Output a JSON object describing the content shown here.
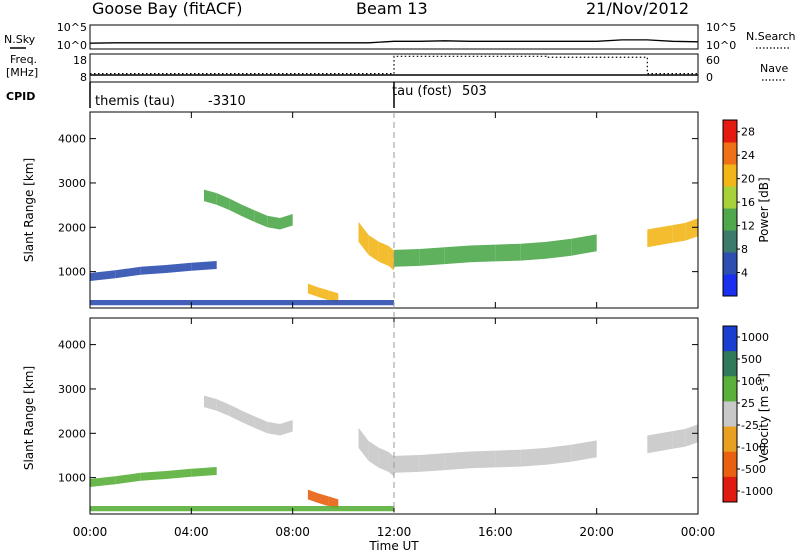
{
  "header": {
    "station": "Goose Bay (fitACF)",
    "beam": "Beam 13",
    "date": "21/Nov/2012"
  },
  "chart_data": [
    {
      "type": "line",
      "panel": "noise",
      "left_label": "N.Sky",
      "right_label": "N.Search",
      "left_ticks": [
        "10^5",
        "10^0"
      ],
      "right_ticks": [
        "10^5",
        "10^0"
      ],
      "x": [
        "00:00",
        "01:00",
        "02:00",
        "03:00",
        "04:00",
        "05:00",
        "06:00",
        "07:00",
        "08:00",
        "09:00",
        "10:00",
        "11:00",
        "12:00",
        "13:00",
        "14:00",
        "15:00",
        "16:00",
        "17:00",
        "18:00",
        "19:00",
        "20:00",
        "21:00",
        "22:00",
        "23:00",
        "24:00"
      ],
      "series": [
        {
          "name": "N.Sky",
          "values": [
            1.2,
            1.3,
            1.3,
            1.3,
            1.3,
            1.3,
            1.3,
            1.3,
            1.3,
            1.3,
            1.3,
            1.3,
            1.6,
            1.6,
            1.7,
            1.6,
            1.6,
            1.6,
            1.6,
            1.6,
            1.6,
            1.9,
            1.9,
            1.6,
            1.5
          ]
        }
      ]
    },
    {
      "type": "line",
      "panel": "frequency",
      "left_label": "Freq.",
      "left_unit": "[MHz]",
      "right_label": "Nave",
      "left_ticks": [
        "18",
        "8"
      ],
      "right_ticks": [
        "60",
        "0"
      ],
      "x": [
        "00:00",
        "12:00",
        "18:00",
        "22:00",
        "24:00"
      ],
      "series": [
        {
          "name": "Freq.",
          "values": [
            10.5,
            10.5,
            10.5,
            10.5,
            10.5
          ]
        },
        {
          "name": "Nave",
          "values": [
            18,
            55,
            53,
            18,
            18
          ]
        }
      ]
    },
    {
      "type": "table",
      "panel": "cpid",
      "label": "CPID",
      "segments": [
        {
          "start": "00:00",
          "end": "12:00",
          "name": "themis (tau)",
          "id": "-3310"
        },
        {
          "start": "12:00",
          "end": "24:00",
          "name": "tau (fost)",
          "id": "503"
        }
      ]
    },
    {
      "type": "heatmap",
      "panel": "power",
      "ylabel": "Slant Range [km]",
      "yticks": [
        1000,
        2000,
        3000,
        4000
      ],
      "ylim": [
        180,
        4600
      ],
      "colorbar_label": "Power [dB]",
      "colorbar_ticks": [
        4,
        8,
        12,
        16,
        20,
        24,
        28
      ],
      "colorbar_range": [
        0,
        30
      ],
      "echo_bands": [
        {
          "t": [
            4.5,
            5.0,
            5.5,
            6.0,
            6.5,
            7.0,
            7.5,
            8.0
          ],
          "range": [
            2720,
            2640,
            2520,
            2380,
            2250,
            2130,
            2080,
            2170
          ],
          "width": 260,
          "level": 14
        },
        {
          "t": [
            0.0,
            1.0,
            2.0,
            3.0,
            4.0,
            5.0
          ],
          "range": [
            880,
            940,
            1020,
            1060,
            1110,
            1150
          ],
          "width": 180,
          "level": 7
        },
        {
          "t": [
            10.6,
            11.0,
            11.4,
            11.8,
            12.0
          ],
          "range": [
            1900,
            1600,
            1450,
            1350,
            1250
          ],
          "width": 450,
          "level": 21
        },
        {
          "t": [
            12.0,
            13.0,
            14.0,
            15.0,
            16.0,
            17.0,
            18.0,
            19.0,
            20.0
          ],
          "range": [
            1300,
            1320,
            1360,
            1400,
            1420,
            1440,
            1480,
            1550,
            1650
          ],
          "width": 380,
          "level": 13
        },
        {
          "t": [
            8.6,
            9.0,
            9.4,
            9.8
          ],
          "range": [
            620,
            540,
            470,
            400
          ],
          "width": 220,
          "level": 22
        },
        {
          "t": [
            22.0,
            22.5,
            23.0,
            23.5,
            24.0
          ],
          "range": [
            1750,
            1800,
            1850,
            1900,
            2000
          ],
          "width": 400,
          "level": 19
        },
        {
          "t": [
            0.0,
            3.0,
            6.0,
            9.0,
            12.0
          ],
          "range": [
            300,
            300,
            300,
            300,
            300
          ],
          "width": 120,
          "level": 6
        }
      ]
    },
    {
      "type": "heatmap",
      "panel": "velocity",
      "ylabel": "Slant Range [km]",
      "yticks": [
        1000,
        2000,
        3000,
        4000
      ],
      "ylim": [
        180,
        4600
      ],
      "colorbar_label": "Velocity [m s^-1]",
      "colorbar_ticks": [
        "1000",
        "500",
        "100",
        "25",
        "-25",
        "-100",
        "-500",
        "-1000"
      ],
      "echo_bands": [
        {
          "t": [
            4.5,
            5.0,
            5.5,
            6.0,
            6.5,
            7.0,
            7.5,
            8.0
          ],
          "range": [
            2720,
            2640,
            2520,
            2380,
            2250,
            2130,
            2080,
            2170
          ],
          "width": 260,
          "level": 0
        },
        {
          "t": [
            0.0,
            1.0,
            2.0,
            3.0,
            4.0,
            5.0
          ],
          "range": [
            880,
            940,
            1020,
            1060,
            1110,
            1150
          ],
          "width": 180,
          "level": 80
        },
        {
          "t": [
            10.6,
            11.0,
            11.4,
            11.8,
            12.0
          ],
          "range": [
            1900,
            1600,
            1450,
            1350,
            1250
          ],
          "width": 450,
          "level": 0
        },
        {
          "t": [
            12.0,
            13.0,
            14.0,
            15.0,
            16.0,
            17.0,
            18.0,
            19.0,
            20.0
          ],
          "range": [
            1300,
            1320,
            1360,
            1400,
            1420,
            1440,
            1480,
            1550,
            1650
          ],
          "width": 380,
          "level": 0
        },
        {
          "t": [
            8.6,
            9.0,
            9.4,
            9.8
          ],
          "range": [
            620,
            540,
            470,
            400
          ],
          "width": 220,
          "level": -250
        },
        {
          "t": [
            22.0,
            22.5,
            23.0,
            23.5,
            24.0
          ],
          "range": [
            1750,
            1800,
            1850,
            1900,
            2000
          ],
          "width": 400,
          "level": 0
        },
        {
          "t": [
            0.0,
            3.0,
            6.0,
            9.0,
            12.0
          ],
          "range": [
            300,
            300,
            300,
            300,
            300
          ],
          "width": 120,
          "level": 60
        }
      ]
    }
  ],
  "x_axis": {
    "ticks": [
      "00:00",
      "04:00",
      "08:00",
      "12:00",
      "16:00",
      "20:00",
      "00:00"
    ],
    "tick_hours": [
      0,
      4,
      8,
      12,
      16,
      20,
      24
    ],
    "label": "Time UT",
    "range_hours": [
      0,
      24
    ]
  },
  "colors": {
    "power_scale": [
      "#1a2ff0",
      "#2e4fb0",
      "#3c7a6c",
      "#4fa94c",
      "#a8d23a",
      "#f2b618",
      "#f07018",
      "#e41a10"
    ],
    "velocity_scale": [
      "#1a3fd0",
      "#2e7a5a",
      "#5ab03a",
      "#c8c8c8",
      "#e8a020",
      "#e86010",
      "#e01a10"
    ]
  }
}
